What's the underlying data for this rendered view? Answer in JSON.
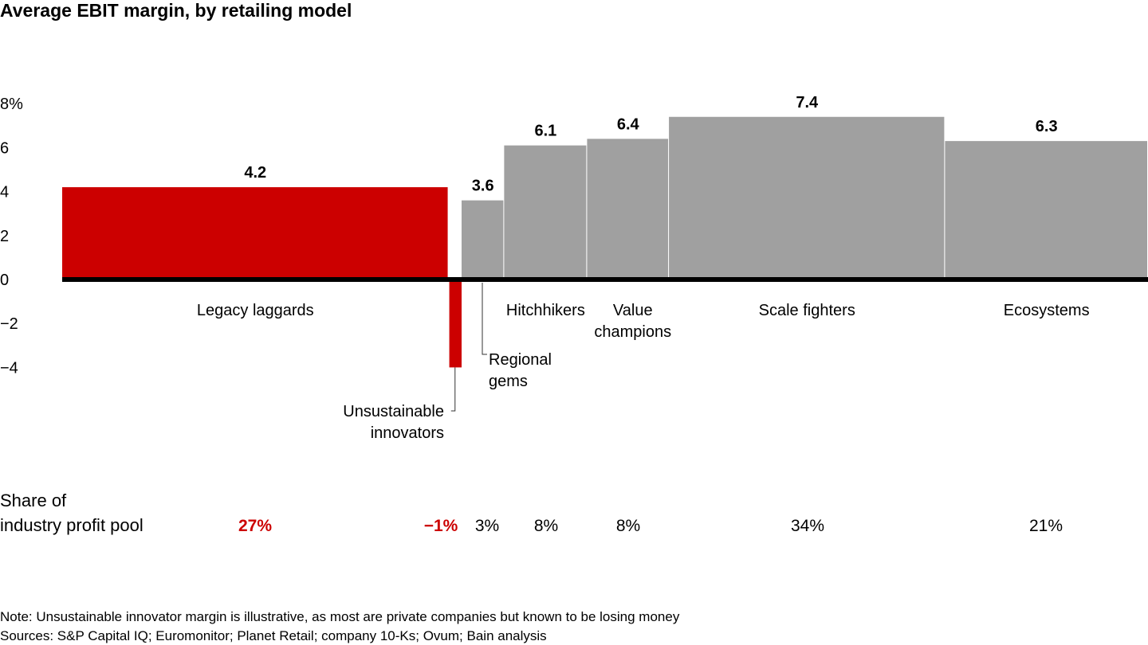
{
  "chart_data": {
    "type": "bar",
    "variable_width": true,
    "title": "Average EBIT margin, by retailing model",
    "ylim": [
      -4,
      8
    ],
    "yticks": [
      8,
      6,
      4,
      2,
      0,
      -2,
      -4
    ],
    "ytick_labels": [
      "8%",
      "6",
      "4",
      "2",
      "0",
      "−2",
      "−4"
    ],
    "grid": false,
    "categories": [
      "Legacy laggards",
      "Unsustainable innovators",
      "Regional gems",
      "Hitchhikers",
      "Value champions",
      "Scale fighters",
      "Ecosystems"
    ],
    "values": [
      4.2,
      -4,
      3.6,
      6.1,
      6.4,
      7.4,
      6.3
    ],
    "value_labels": [
      "4.2",
      "",
      "3.6",
      "6.1",
      "6.4",
      "7.4",
      "6.3"
    ],
    "relative_widths": [
      35.4,
      1.2,
      3.9,
      7.6,
      7.5,
      25.3,
      18.6
    ],
    "colors": [
      "#cc0000",
      "#cc0000",
      "#a0a0a0",
      "#a0a0a0",
      "#a0a0a0",
      "#a0a0a0",
      "#a0a0a0"
    ],
    "profit_pool_label": "Share of\nindustry profit pool",
    "profit_pool_shares": [
      "27%",
      "−1%",
      "3%",
      "8%",
      "8%",
      "34%",
      "21%"
    ],
    "highlight_color": "#cc0000"
  },
  "footer": {
    "note": "Note: Unsustainable innovator margin is illustrative, as most are private companies but known to be losing money",
    "sources": "Sources: S&P Capital IQ; Euromonitor; Planet Retail; company 10-Ks; Ovum; Bain analysis"
  }
}
